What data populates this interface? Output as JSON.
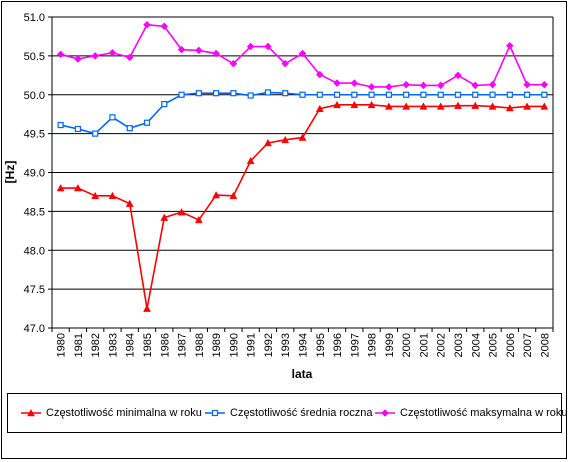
{
  "chart_data": {
    "type": "line",
    "xlabel": "lata",
    "ylabel": "[Hz]",
    "ylim": [
      47.0,
      51.0
    ],
    "yticks": [
      "47.0",
      "47.5",
      "48.0",
      "48.5",
      "49.0",
      "49.5",
      "50.0",
      "50.5",
      "51.0"
    ],
    "x": [
      "1980",
      "1981",
      "1982",
      "1983",
      "1984",
      "1985",
      "1986",
      "1987",
      "1988",
      "1989",
      "1990",
      "1991",
      "1992",
      "1993",
      "1994",
      "1995",
      "1996",
      "1997",
      "1998",
      "1999",
      "2000",
      "2001",
      "2002",
      "2003",
      "2004",
      "2005",
      "2006",
      "2007",
      "2008"
    ],
    "grid": "horizontal",
    "legend_position": "bottom",
    "series": [
      {
        "name": "Częstotliwość minimalna w roku",
        "color": "#ff0000",
        "marker": "triangle",
        "values": [
          48.8,
          48.8,
          48.7,
          48.7,
          48.6,
          47.25,
          48.42,
          48.49,
          48.39,
          48.71,
          48.7,
          49.15,
          49.38,
          49.42,
          49.45,
          49.82,
          49.87,
          49.87,
          49.87,
          49.85,
          49.85,
          49.85,
          49.85,
          49.86,
          49.86,
          49.85,
          49.83,
          49.85,
          49.85
        ]
      },
      {
        "name": "Częstotliwość średnia roczna",
        "color": "#0066ff",
        "marker": "square",
        "values": [
          49.61,
          49.56,
          49.5,
          49.71,
          49.57,
          49.64,
          49.88,
          50.0,
          50.02,
          50.02,
          50.02,
          49.99,
          50.03,
          50.02,
          50.0,
          50.0,
          50.0,
          50.0,
          50.0,
          50.0,
          50.0,
          50.0,
          50.0,
          50.0,
          50.0,
          50.0,
          50.0,
          50.0,
          50.0
        ]
      },
      {
        "name": "Częstotliwość maksymalna w roku",
        "color": "#ff00ff",
        "marker": "diamond",
        "values": [
          50.52,
          50.46,
          50.5,
          50.54,
          50.48,
          50.9,
          50.88,
          50.58,
          50.57,
          50.53,
          50.4,
          50.62,
          50.62,
          50.4,
          50.53,
          50.26,
          50.15,
          50.15,
          50.1,
          50.1,
          50.13,
          50.12,
          50.12,
          50.25,
          50.12,
          50.13,
          50.63,
          50.13,
          50.13
        ]
      }
    ]
  }
}
